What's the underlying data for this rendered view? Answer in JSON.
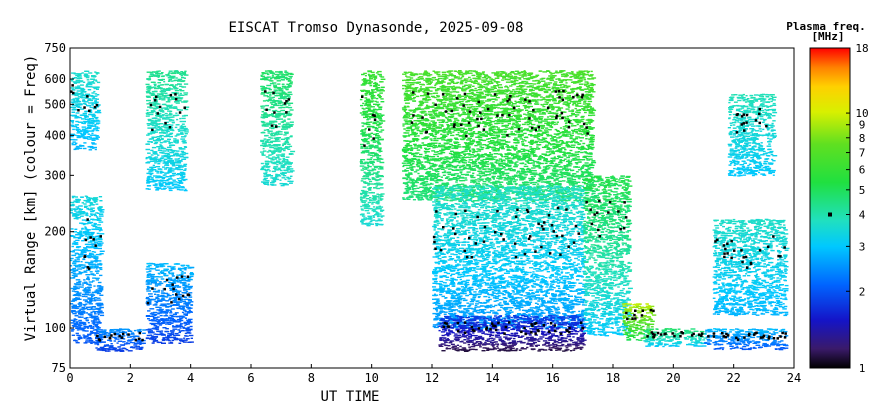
{
  "chart_data": {
    "type": "scatter",
    "title": "EISCAT Tromso Dynasonde, 2025-09-08",
    "xlabel": "UT TIME",
    "ylabel": "Virtual Range [km] (colour = Freq)",
    "xlim": [
      0,
      24
    ],
    "ylim": [
      75,
      750
    ],
    "yscale": "log",
    "xticks": [
      "0",
      "2",
      "4",
      "6",
      "8",
      "10",
      "12",
      "14",
      "16",
      "18",
      "20",
      "22",
      "24"
    ],
    "yticks": [
      "75",
      "100",
      "200",
      "300",
      "400",
      "500",
      "600",
      "750"
    ],
    "grid": false,
    "colorbar": {
      "title": "Plasma freq.",
      "unit": "[MHz]",
      "range": [
        1,
        18
      ],
      "scale": "log",
      "ticks": [
        "1",
        "2",
        "3",
        "4",
        "5",
        "6",
        "7",
        "8",
        "9",
        "10",
        "18"
      ],
      "marker_value": 4
    },
    "echo_regions": [
      {
        "t0": 0.0,
        "t1": 1.0,
        "h0": 90,
        "h1": 260,
        "f0": 2.0,
        "f1": 3.6
      },
      {
        "t0": 0.8,
        "t1": 2.4,
        "h0": 85,
        "h1": 100,
        "f0": 1.8,
        "f1": 2.6
      },
      {
        "t0": 2.5,
        "t1": 4.0,
        "h0": 90,
        "h1": 160,
        "f0": 1.8,
        "f1": 3.0
      },
      {
        "t0": 0.0,
        "t1": 0.9,
        "h0": 360,
        "h1": 640,
        "f0": 2.8,
        "f1": 3.8
      },
      {
        "t0": 2.5,
        "t1": 3.8,
        "h0": 270,
        "h1": 640,
        "f0": 3.0,
        "f1": 4.5
      },
      {
        "t0": 6.3,
        "t1": 7.3,
        "h0": 280,
        "h1": 640,
        "f0": 3.5,
        "f1": 5.0
      },
      {
        "t0": 9.6,
        "t1": 10.3,
        "h0": 210,
        "h1": 640,
        "f0": 3.5,
        "f1": 6.5
      },
      {
        "t0": 11.0,
        "t1": 17.3,
        "h0": 250,
        "h1": 640,
        "f0": 4.5,
        "f1": 7.0
      },
      {
        "t0": 12.0,
        "t1": 17.0,
        "h0": 100,
        "h1": 280,
        "f0": 2.5,
        "f1": 4.0
      },
      {
        "t0": 12.2,
        "t1": 17.0,
        "h0": 85,
        "h1": 110,
        "f0": 1.1,
        "f1": 2.0
      },
      {
        "t0": 17.0,
        "t1": 18.5,
        "h0": 95,
        "h1": 300,
        "f0": 3.0,
        "f1": 5.5
      },
      {
        "t0": 18.3,
        "t1": 19.3,
        "h0": 92,
        "h1": 120,
        "f0": 5.0,
        "f1": 10.0
      },
      {
        "t0": 19.0,
        "t1": 21.0,
        "h0": 88,
        "h1": 100,
        "f0": 3.0,
        "f1": 5.0
      },
      {
        "t0": 21.0,
        "t1": 23.7,
        "h0": 86,
        "h1": 100,
        "f0": 2.0,
        "f1": 3.0
      },
      {
        "t0": 21.3,
        "t1": 23.7,
        "h0": 110,
        "h1": 220,
        "f0": 2.8,
        "f1": 3.8
      },
      {
        "t0": 21.8,
        "t1": 23.3,
        "h0": 300,
        "h1": 540,
        "f0": 3.0,
        "f1": 4.0
      }
    ]
  }
}
